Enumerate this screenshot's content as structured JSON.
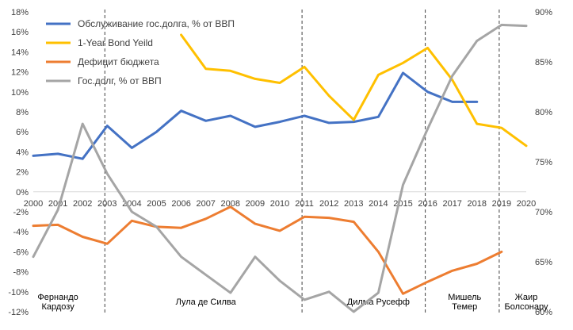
{
  "chart_data": {
    "type": "line",
    "x": [
      "2000",
      "2001",
      "2002",
      "2003",
      "2004",
      "2005",
      "2006",
      "2007",
      "2008",
      "2009",
      "2010",
      "2011",
      "2012",
      "2013",
      "2014",
      "2015",
      "2016",
      "2017",
      "2018",
      "2019",
      "2020"
    ],
    "y_left": {
      "min": -12,
      "max": 18,
      "step": 2,
      "suffix": "%"
    },
    "y_right": {
      "min": 60,
      "max": 90,
      "step": 5,
      "suffix": "%"
    },
    "series": [
      {
        "name": "Обслуживание гос.долга, % от ВВП",
        "color": "#4472C4",
        "axis": "left",
        "values": [
          3.6,
          3.8,
          3.3,
          6.6,
          4.4,
          6.0,
          8.1,
          7.1,
          7.6,
          6.5,
          7.0,
          7.6,
          6.9,
          7.0,
          7.5,
          11.9,
          10.0,
          9.0,
          9.0,
          null,
          null
        ]
      },
      {
        "name": "1-Year Bond Yeild",
        "color": "#FFC000",
        "axis": "left",
        "values": [
          null,
          null,
          null,
          null,
          null,
          null,
          15.7,
          12.3,
          12.1,
          11.3,
          10.9,
          12.5,
          9.6,
          7.2,
          11.7,
          12.9,
          14.4,
          11.2,
          6.8,
          6.4,
          4.6
        ]
      },
      {
        "name": "Дефицит бюджета",
        "color": "#ED7D31",
        "axis": "left",
        "values": [
          -3.4,
          -3.3,
          -4.5,
          -5.2,
          -2.9,
          -3.5,
          -3.6,
          -2.7,
          -1.5,
          -3.2,
          -3.9,
          -2.5,
          -2.6,
          -3.0,
          -6.0,
          -10.2,
          -9.0,
          -7.9,
          -7.2,
          -6.0,
          null
        ]
      },
      {
        "name": "Гос.долг, % от ВВП",
        "color": "#A5A5A5",
        "axis": "right",
        "values": [
          65.5,
          70.2,
          78.8,
          73.8,
          70.0,
          68.5,
          65.5,
          63.7,
          61.9,
          65.5,
          63.1,
          61.2,
          62.0,
          60.0,
          61.9,
          72.7,
          78.3,
          83.6,
          87.1,
          88.7,
          88.6
        ]
      }
    ],
    "dividers": [
      "2003",
      "2011",
      "2016",
      "2019"
    ],
    "eras": [
      {
        "label": "Фернандо\nКардозу",
        "x": "2001"
      },
      {
        "label": "Лула де Силва",
        "x": "2007"
      },
      {
        "label": "Дилма Русефф",
        "x": "2014"
      },
      {
        "label": "Мишель\nТемер",
        "x": "2017.5"
      },
      {
        "label": "Жаир\nБолсонару",
        "x": "2020"
      }
    ]
  }
}
